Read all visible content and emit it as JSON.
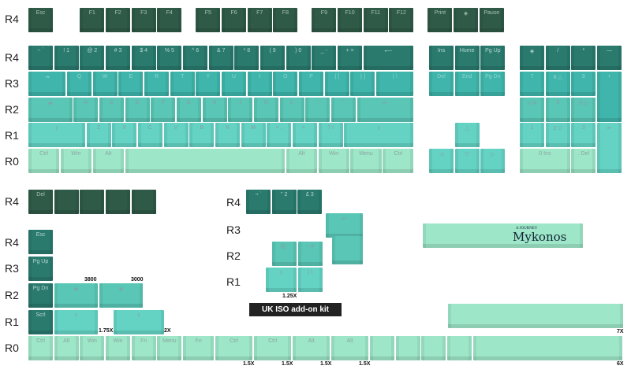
{
  "row_labels": {
    "main": [
      "R4",
      "R4",
      "R3",
      "R2",
      "R1",
      "R0"
    ],
    "extra_left": [
      "R4",
      "R4",
      "R3",
      "R2",
      "R1",
      "R0"
    ],
    "iso": [
      "R4",
      "R3",
      "R2",
      "R1"
    ]
  },
  "colors": {
    "fn": "#2f5a48",
    "r4": "#2a7a6e",
    "r3": "#3fb5ab",
    "r2": "#5ac6b5",
    "r1": "#64d3c4",
    "r0": "#9de6c8"
  },
  "keys": {
    "fn_row": [
      "Esc",
      "F1",
      "F2",
      "F3",
      "F4",
      "F5",
      "F6",
      "F7",
      "F8",
      "F9",
      "F10",
      "F11",
      "F12",
      "Print",
      "◈",
      "Pause"
    ],
    "num_row": [
      "~ `",
      "! 1",
      "@ 2",
      "# 3",
      "$ 4",
      "% 5",
      "^ 6",
      "& 7",
      "* 8",
      "( 9",
      ") 0",
      "_ -",
      "+ =",
      "⟵"
    ],
    "top_row": [
      "⇥",
      "Q",
      "W",
      "E",
      "R",
      "T",
      "Y",
      "U",
      "I",
      "O",
      "P",
      "{ [",
      "} ]",
      "| \\"
    ],
    "home_row": [
      "◈",
      "A",
      "S",
      "D",
      "F",
      "G",
      "H",
      "J",
      "K",
      "L",
      ": ;",
      "\" '",
      "↵"
    ],
    "bottom_row": [
      "⇧",
      "Z",
      "X",
      "C",
      "V",
      "B",
      "N",
      "M",
      "< ,",
      "> .",
      "? /",
      "⇧"
    ],
    "space_row": [
      "Ctrl",
      "Win",
      "Alt",
      "",
      "Alt",
      "Win",
      "Menu",
      "Ctrl"
    ],
    "nav_r4": [
      "Ins",
      "Home",
      "Pg Up"
    ],
    "nav_r3": [
      "Del",
      "End",
      "Pg Dn"
    ],
    "nav_arrows": [
      "△",
      "◁",
      "▽",
      "▷"
    ],
    "numpad_r4": [
      "◈",
      "/",
      "*",
      "—"
    ],
    "numpad_r3": [
      "7",
      "8 △",
      "9",
      "+"
    ],
    "numpad_r2": [
      "◁ 4",
      "5",
      "6 ▷"
    ],
    "numpad_r1": [
      "1",
      "2 ▽",
      "3",
      "↵"
    ],
    "numpad_r0": [
      "0 Ins",
      ". Del"
    ],
    "extra_r4": [
      "Del",
      "",
      "",
      "",
      ""
    ],
    "extra_col": [
      "Esc",
      "Pg Up",
      "Pg Dn",
      "Scrl"
    ],
    "extra_r2": [
      "◈",
      "◈"
    ],
    "extra_r1": [
      "⇧",
      "⇧"
    ],
    "extra_r0": [
      "Ctrl",
      "Alt",
      "Win",
      "Win",
      "Fn",
      "Menu",
      "Fn",
      "Ctrl",
      "Ctrl",
      "Alt",
      "Alt",
      "",
      "",
      "",
      "",
      ""
    ],
    "iso_r4": [
      "¬ `",
      "\" 2",
      "£ 3"
    ],
    "iso_enter": [
      "↵"
    ],
    "iso_r2": [
      "@ '",
      "~ #"
    ],
    "iso_r1": [
      "⇧",
      "| \\"
    ],
    "spacebar_7x": [
      ""
    ],
    "spacebar_logo": [
      ""
    ]
  },
  "size_labels": {
    "s3800": "3800",
    "s3000": "3000",
    "s175": "1.75X",
    "s2": "2X",
    "s125": "1.25X",
    "s15a": "1.5X",
    "s15b": "1.5X",
    "s15c": "1.5X",
    "s15d": "1.5X",
    "s7": "7X",
    "s6": "6X"
  },
  "badge": "UK ISO add-on kit",
  "logo": {
    "small": "A JOURNEY",
    "big": "Mykonos"
  }
}
